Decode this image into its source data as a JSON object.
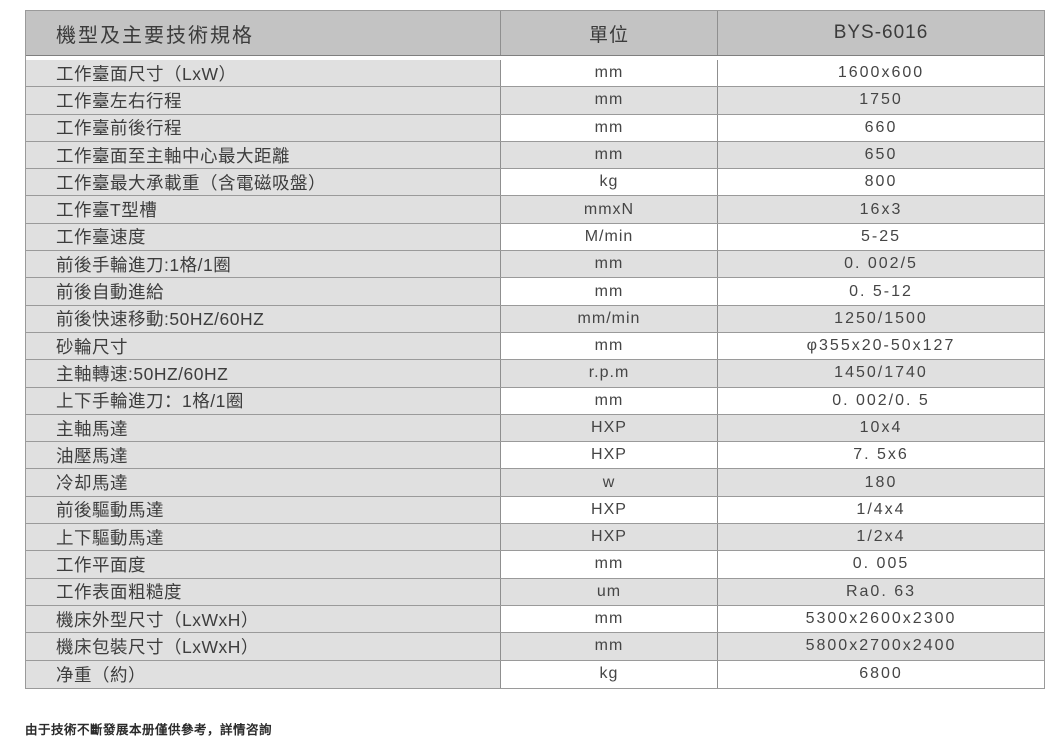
{
  "table": {
    "header": {
      "spec_label": "機型及主要技術規格",
      "unit_label": "單位",
      "model_label": "BYS-6016"
    },
    "rows": [
      {
        "spec": "工作臺面尺寸（LxW）",
        "unit": "mm",
        "value": "1600x600"
      },
      {
        "spec": "工作臺左右行程",
        "unit": "mm",
        "value": "1750"
      },
      {
        "spec": "工作臺前後行程",
        "unit": "mm",
        "value": "660"
      },
      {
        "spec": "工作臺面至主軸中心最大距離",
        "unit": "mm",
        "value": "650"
      },
      {
        "spec": "工作臺最大承載重（含電磁吸盤）",
        "unit": "kg",
        "value": "800"
      },
      {
        "spec": "工作臺T型槽",
        "unit": "mmxN",
        "value": "16x3"
      },
      {
        "spec": "工作臺速度",
        "unit": "M/min",
        "value": "5-25"
      },
      {
        "spec": "前後手輪進刀:1格/1圈",
        "unit": "mm",
        "value": "0. 002/5"
      },
      {
        "spec": "前後自動進給",
        "unit": "mm",
        "value": "0. 5-12"
      },
      {
        "spec": "前後快速移動:50HZ/60HZ",
        "unit": "mm/min",
        "value": "1250/1500"
      },
      {
        "spec": "砂輪尺寸",
        "unit": "mm",
        "value": "φ355x20-50x127"
      },
      {
        "spec": "主軸轉速:50HZ/60HZ",
        "unit": "r.p.m",
        "value": "1450/1740"
      },
      {
        "spec": "上下手輪進刀：1格/1圈",
        "unit": "mm",
        "value": "0. 002/0. 5"
      },
      {
        "spec": "主軸馬達",
        "unit": "HXP",
        "value": "10x4"
      },
      {
        "spec": "油壓馬達",
        "unit": "HXP",
        "value": "7. 5x6"
      },
      {
        "spec": "冷却馬達",
        "unit": "w",
        "value": "180"
      },
      {
        "spec": "前後驅動馬達",
        "unit": "HXP",
        "value": "1/4x4"
      },
      {
        "spec": "上下驅動馬達",
        "unit": "HXP",
        "value": "1/2x4"
      },
      {
        "spec": "工作平面度",
        "unit": "mm",
        "value": "0. 005"
      },
      {
        "spec": "工作表面粗糙度",
        "unit": "um",
        "value": "Ra0. 63"
      },
      {
        "spec": "機床外型尺寸（LxWxH）",
        "unit": "mm",
        "value": "5300x2600x2300"
      },
      {
        "spec": "機床包裝尺寸（LxWxH）",
        "unit": "mm",
        "value": "5800x2700x2400"
      },
      {
        "spec": "净重（約）",
        "unit": "kg",
        "value": "6800"
      }
    ]
  },
  "footer": {
    "note": "由于技術不斷發展本册僅供參考，詳情咨詢"
  },
  "colors": {
    "header_bg": "#c3c3c3",
    "row_gray": "#e0e0e0",
    "row_white": "#ffffff",
    "border": "#9a9a9a",
    "text": "#3d3d3d"
  }
}
